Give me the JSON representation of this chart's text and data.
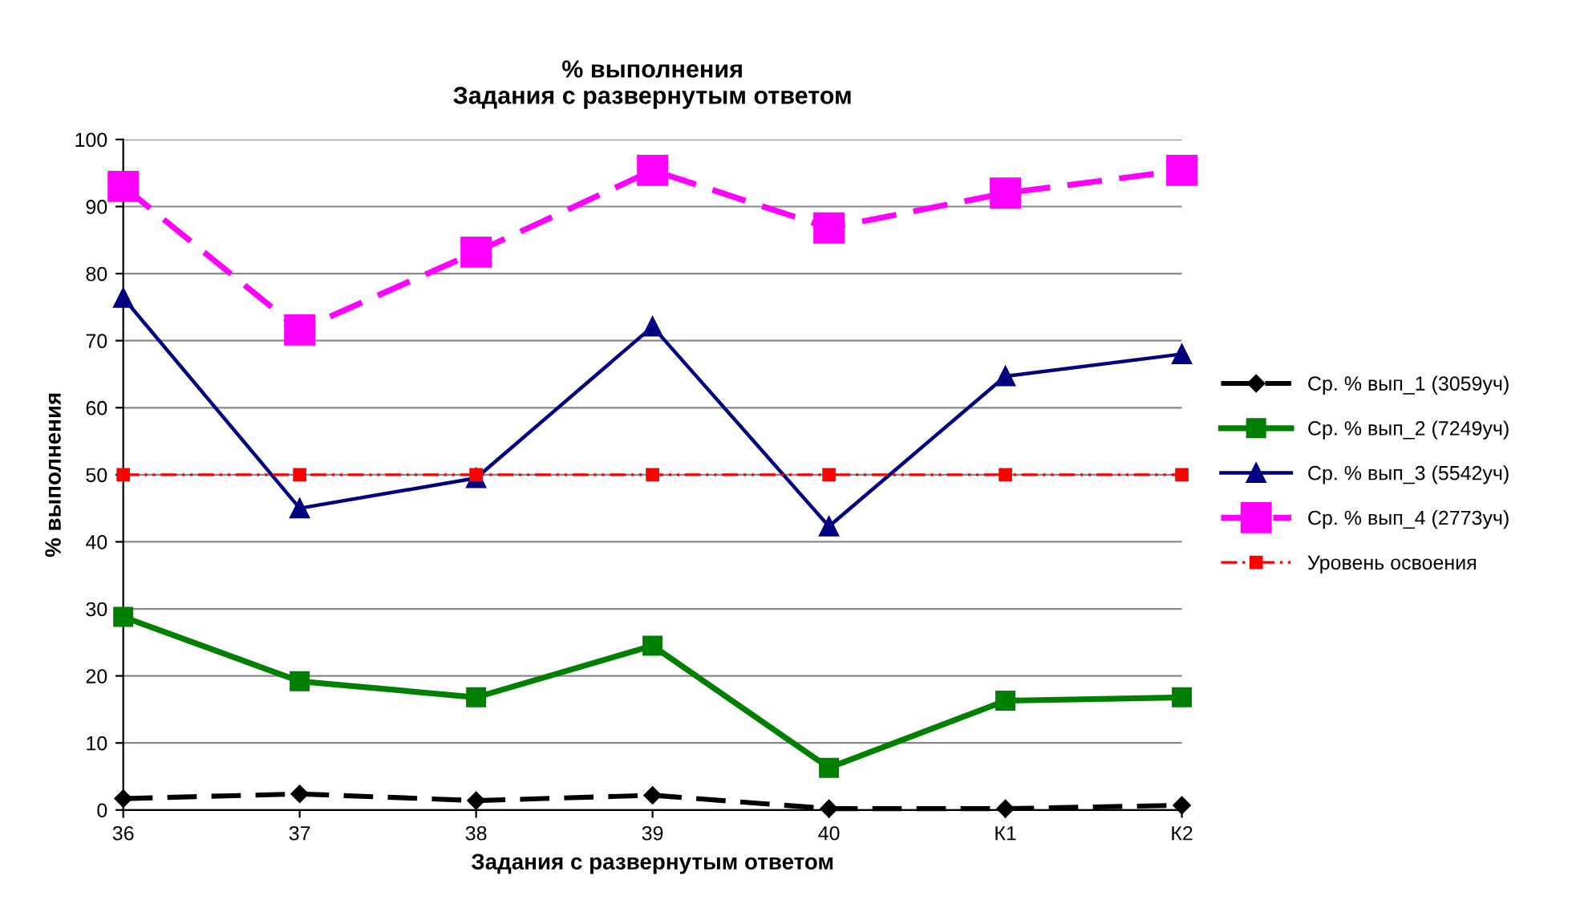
{
  "chart_data": {
    "type": "line",
    "title": "% выполнения\nЗадания с развернутым ответом",
    "xlabel": "Задания с развернутым ответом",
    "ylabel": "% выполнения",
    "categories": [
      "36",
      "37",
      "38",
      "39",
      "40",
      "К1",
      "К2"
    ],
    "series": [
      {
        "name": "Ср. % вып_1 (3059уч)",
        "color": "#000000",
        "marker": "diamond",
        "line_style": "dashed",
        "values": [
          1.7,
          2.4,
          1.4,
          2.2,
          0.2,
          0.2,
          0.7
        ]
      },
      {
        "name": "Ср. % вып_2 (7249уч)",
        "color": "#008000",
        "marker": "square",
        "line_style": "solid",
        "values": [
          28.8,
          19.2,
          16.8,
          24.5,
          6.3,
          16.3,
          16.8
        ]
      },
      {
        "name": "Ср. % вып_3 (5542уч)",
        "color": "#000080",
        "marker": "triangle",
        "line_style": "solid",
        "values": [
          76.4,
          45,
          49.5,
          72.1,
          42.3,
          64.7,
          68
        ]
      },
      {
        "name": "Ср. % вып_4 (2773уч)",
        "color": "#ff00ff",
        "marker": "square",
        "line_style": "dashed",
        "values": [
          93,
          71.6,
          83.2,
          95.4,
          86.8,
          92,
          95.4
        ]
      },
      {
        "name": "Уровень освоения",
        "color": "#ff0000",
        "marker": "square",
        "line_style": "dotted",
        "values": [
          50,
          50,
          50,
          50,
          50,
          50,
          50
        ]
      }
    ],
    "ylim": [
      0,
      100
    ],
    "yticks": [
      0,
      10,
      20,
      30,
      40,
      50,
      60,
      70,
      80,
      90,
      100
    ],
    "grid": "y",
    "legend": "right"
  }
}
